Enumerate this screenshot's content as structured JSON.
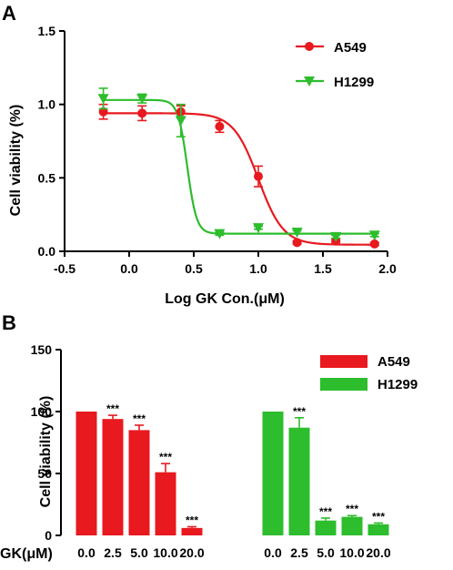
{
  "colors": {
    "series_a": "#e8191f",
    "series_b": "#2dbd2d",
    "axis": "#000000"
  },
  "chart_data": [
    {
      "panel": "A",
      "type": "scatter",
      "xlabel": "Log GK Con.(μM)",
      "ylabel": "Cell viability (%)",
      "xlim": [
        -0.5,
        2.0
      ],
      "ylim": [
        0.0,
        1.5
      ],
      "xticks": [
        "-0.5",
        "0.0",
        "0.5",
        "1.0",
        "1.5",
        "2.0"
      ],
      "yticks": [
        "0.0",
        "0.5",
        "1.0",
        "1.5"
      ],
      "legend_position": "top-right",
      "grid": false,
      "series": [
        {
          "name": "A549",
          "color": "#e8191f",
          "marker": "circle",
          "x": [
            -0.2,
            0.1,
            0.4,
            0.7,
            1.0,
            1.3,
            1.6,
            1.9
          ],
          "y": [
            0.95,
            0.94,
            0.95,
            0.85,
            0.51,
            0.06,
            0.07,
            0.05
          ],
          "err": [
            0.05,
            0.05,
            0.04,
            0.04,
            0.07,
            0.01,
            0.01,
            0.01
          ],
          "fit": {
            "top": 0.94,
            "bottom": 0.045,
            "logec50": 1.0,
            "hill": 4.5
          }
        },
        {
          "name": "H1299",
          "color": "#2dbd2d",
          "marker": "triangle-down",
          "x": [
            -0.2,
            0.1,
            0.4,
            0.7,
            1.0,
            1.3,
            1.6,
            1.9
          ],
          "y": [
            1.04,
            1.04,
            0.89,
            0.12,
            0.16,
            0.13,
            0.1,
            0.11
          ],
          "err": [
            0.07,
            0.03,
            0.11,
            0.01,
            0.01,
            0.01,
            0.01,
            0.01
          ],
          "fit": {
            "top": 1.03,
            "bottom": 0.12,
            "logec50": 0.45,
            "hill": 12
          }
        }
      ]
    },
    {
      "panel": "B",
      "type": "bar",
      "xlabel": "GK(μM)",
      "ylabel": "Cell viability (%)",
      "ylim": [
        0,
        150
      ],
      "yticks": [
        "0",
        "50",
        "100",
        "150"
      ],
      "legend_position": "top-right",
      "grid": false,
      "series": [
        {
          "name": "A549",
          "color": "#e8191f",
          "categories": [
            "0.0",
            "2.5",
            "5.0",
            "10.0",
            "20.0"
          ],
          "values": [
            100,
            94,
            85,
            51,
            6
          ],
          "err": [
            0,
            3,
            4,
            7,
            1
          ],
          "significance": [
            "",
            "***",
            "***",
            "***",
            "***"
          ]
        },
        {
          "name": "H1299",
          "color": "#2dbd2d",
          "categories": [
            "0.0",
            "2.5",
            "5.0",
            "10.0",
            "20.0"
          ],
          "values": [
            100,
            87,
            12,
            15,
            9
          ],
          "err": [
            0,
            8,
            2,
            1,
            1
          ],
          "significance": [
            "",
            "***",
            "***",
            "***",
            "***"
          ]
        }
      ]
    }
  ]
}
